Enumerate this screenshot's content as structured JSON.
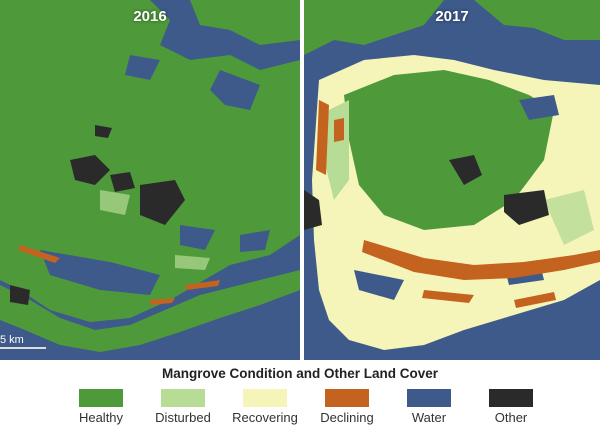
{
  "panels": [
    {
      "year": "2016",
      "scale_label": "5 km"
    },
    {
      "year": "2017"
    }
  ],
  "legend": {
    "title": "Mangrove Condition and Other Land Cover",
    "items": [
      {
        "label": "Healthy",
        "color": "#4e9a3a"
      },
      {
        "label": "Disturbed",
        "color": "#b7dc96"
      },
      {
        "label": "Recovering",
        "color": "#f5f5b9"
      },
      {
        "label": "Declining",
        "color": "#c4631f"
      },
      {
        "label": "Water",
        "color": "#3d5a8a"
      },
      {
        "label": "Other",
        "color": "#2a2a2a"
      }
    ]
  }
}
